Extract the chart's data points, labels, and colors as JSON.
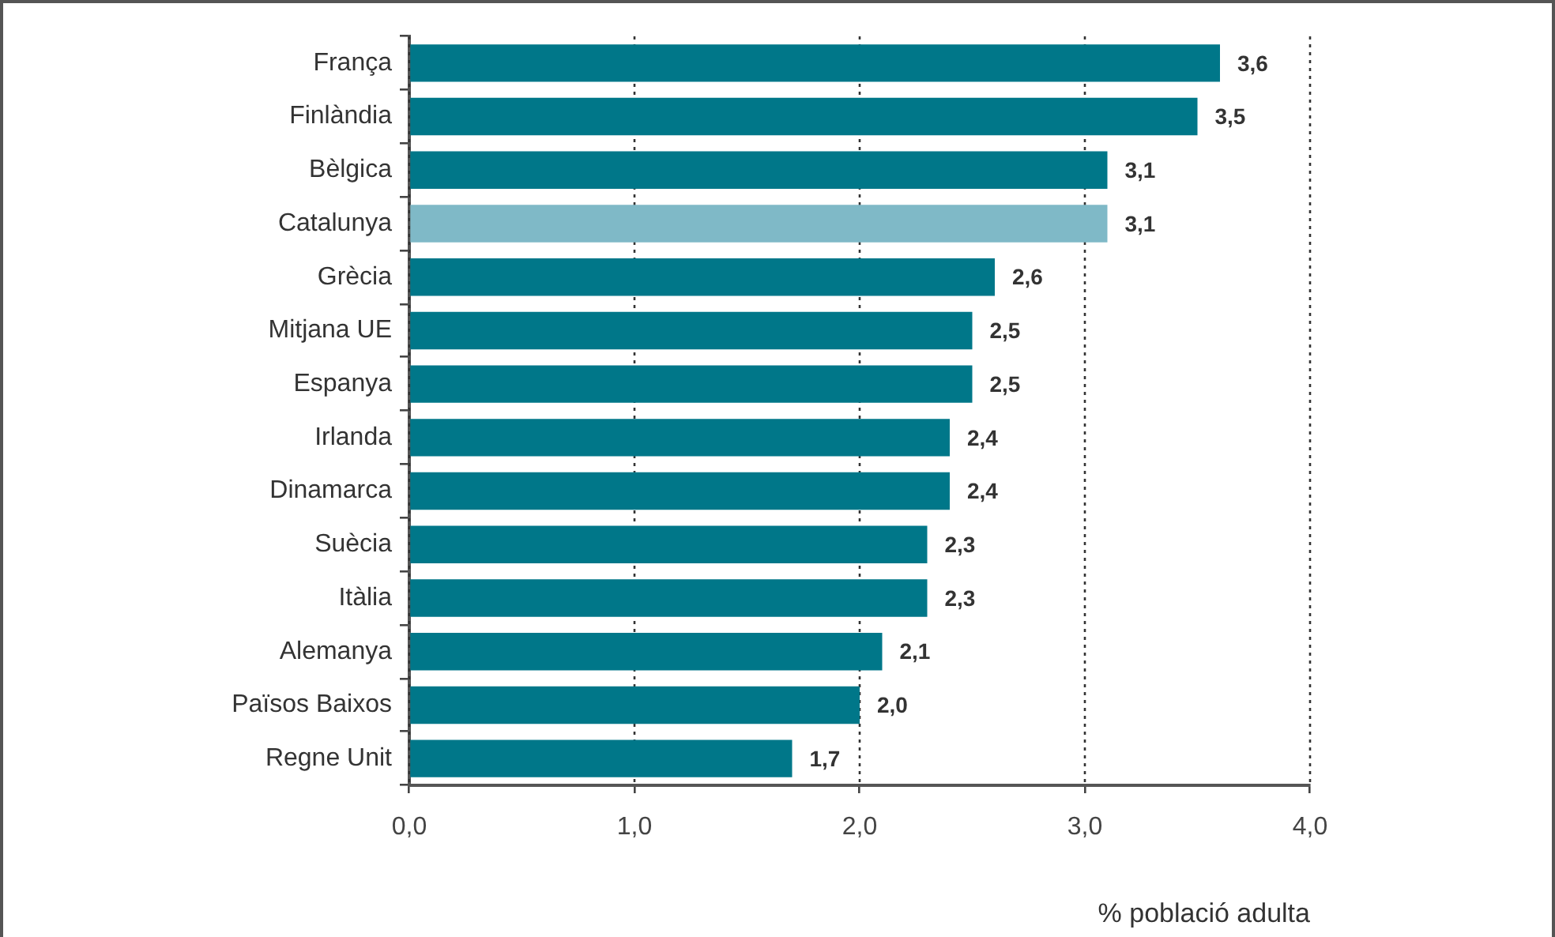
{
  "chart_data": {
    "type": "bar",
    "orientation": "horizontal",
    "categories": [
      "França",
      "Finlàndia",
      "Bèlgica",
      "Catalunya",
      "Grècia",
      "Mitjana UE",
      "Espanya",
      "Irlanda",
      "Dinamarca",
      "Suècia",
      "Itàlia",
      "Alemanya",
      "Països Baixos",
      "Regne Unit"
    ],
    "values": [
      3.6,
      3.5,
      3.1,
      3.1,
      2.6,
      2.5,
      2.5,
      2.4,
      2.4,
      2.3,
      2.3,
      2.1,
      2.0,
      1.7
    ],
    "colors": [
      "#007789",
      "#007789",
      "#007789",
      "#7fb9c7",
      "#007789",
      "#007789",
      "#007789",
      "#007789",
      "#007789",
      "#007789",
      "#007789",
      "#007789",
      "#007789",
      "#007789"
    ],
    "value_labels": [
      "3,6",
      "3,5",
      "3,1",
      "3,1",
      "2,6",
      "2,5",
      "2,5",
      "2,4",
      "2,4",
      "2,3",
      "2,3",
      "2,1",
      "2,0",
      "1,7"
    ],
    "xlabel": "% població adulta",
    "xlim": [
      0,
      4
    ],
    "xticks": [
      {
        "value": 0,
        "label": "0,0"
      },
      {
        "value": 1,
        "label": "1,0"
      },
      {
        "value": 2,
        "label": "2,0"
      },
      {
        "value": 3,
        "label": "3,0"
      },
      {
        "value": 4,
        "label": "4,0"
      }
    ],
    "grid": "x"
  }
}
